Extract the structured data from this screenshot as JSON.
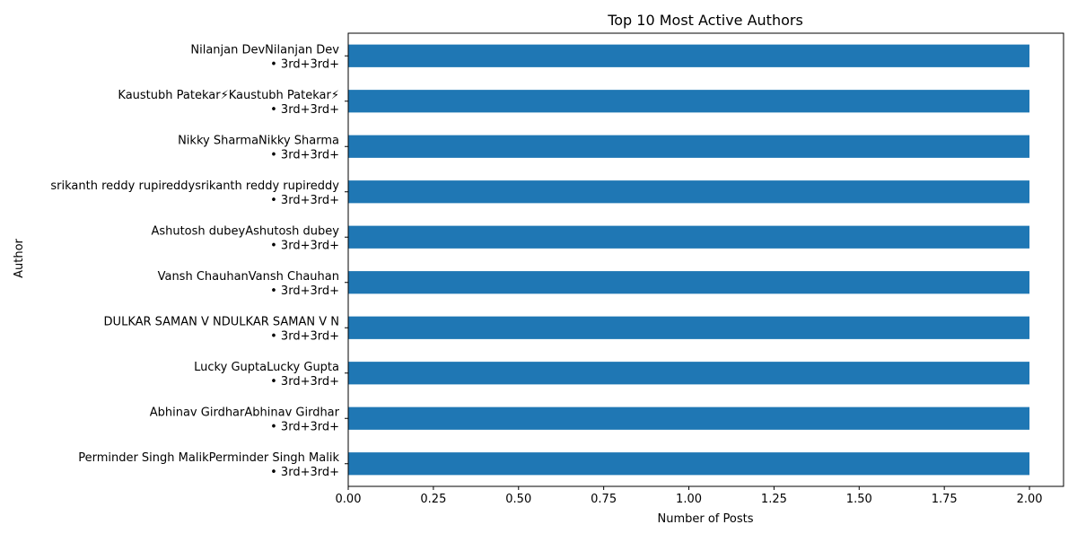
{
  "chart_data": {
    "type": "bar",
    "orientation": "horizontal",
    "title": "Top 10 Most Active Authors",
    "xlabel": "Number of Posts",
    "ylabel": "Author",
    "xlim": [
      0,
      2.1
    ],
    "x_ticks": [
      "0.00",
      "0.25",
      "0.50",
      "0.75",
      "1.00",
      "1.25",
      "1.50",
      "1.75",
      "2.00"
    ],
    "x_tick_values": [
      0,
      0.25,
      0.5,
      0.75,
      1.0,
      1.25,
      1.5,
      1.75,
      2.0
    ],
    "bar_color": "#1f77b4",
    "grid": false,
    "legend": "none",
    "categories": [
      "Perminder Singh MalikPerminder Singh Malik\n • 3rd+3rd+",
      "Abhinav GirdharAbhinav Girdhar\n • 3rd+3rd+",
      "Lucky GuptaLucky Gupta\n • 3rd+3rd+",
      "DULKAR SAMAN V NDULKAR SAMAN V N\n • 3rd+3rd+",
      "Vansh ChauhanVansh Chauhan\n • 3rd+3rd+",
      "Ashutosh dubeyAshutosh dubey\n • 3rd+3rd+",
      "srikanth reddy rupireddysrikanth reddy rupireddy\n • 3rd+3rd+",
      "Nikky SharmaNikky Sharma\n • 3rd+3rd+",
      "Kaustubh Patekar⚡Kaustubh Patekar⚡\n • 3rd+3rd+",
      "Nilanjan DevNilanjan Dev\n • 3rd+3rd+"
    ],
    "values": [
      2,
      2,
      2,
      2,
      2,
      2,
      2,
      2,
      2,
      2
    ]
  }
}
